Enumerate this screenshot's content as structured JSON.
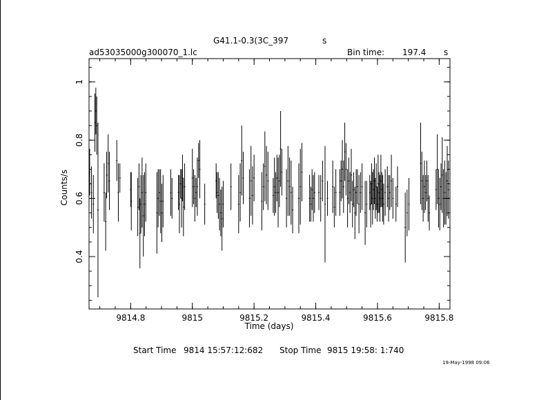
{
  "header": {
    "title": "G41.1-0.3(3C_397",
    "title_suffix": "s",
    "filename": "ad53035000g300070_1.lc",
    "bin_label": "Bin time:",
    "bin_value": "197.4",
    "bin_unit": "s"
  },
  "footer": {
    "start_label": "Start Time",
    "start_value": "9814 15:57:12:682",
    "stop_label": "Stop Time",
    "stop_value": "9815 19:58: 1:740",
    "timestamp": "19-May-1998 09:06"
  },
  "chart_data": {
    "type": "scatter",
    "title": "G41.1-0.3(3C_397",
    "xlabel": "Time (days)",
    "ylabel": "Counts/s",
    "xlim": [
      9814.665,
      9815.835
    ],
    "ylim": [
      0.22,
      1.08
    ],
    "xticks": [
      9814.8,
      9815,
      9815.2,
      9815.4,
      9815.6,
      9815.8
    ],
    "xtick_labels": [
      "9814.8",
      "9815",
      "9815.2",
      "9815.4",
      "9815.6",
      "9815.8"
    ],
    "yticks": [
      0.4,
      0.6,
      0.8,
      1.0
    ],
    "ytick_labels": [
      "0.4",
      "0.6",
      "0.8",
      "1"
    ],
    "grid": false,
    "error_bars": true,
    "points": [
      [
        9814.667,
        0.69,
        0.08
      ],
      [
        9814.673,
        0.62,
        0.09
      ],
      [
        9814.679,
        0.58,
        0.1
      ],
      [
        9814.684,
        0.86,
        0.1
      ],
      [
        9814.687,
        0.9,
        0.08
      ],
      [
        9814.69,
        0.85,
        0.1
      ],
      [
        9814.694,
        0.56,
        0.3
      ],
      [
        9814.714,
        0.62,
        0.1
      ],
      [
        9814.719,
        0.52,
        0.1
      ],
      [
        9814.722,
        0.68,
        0.08
      ],
      [
        9814.727,
        0.72,
        0.1
      ],
      [
        9814.731,
        0.66,
        0.1
      ],
      [
        9814.755,
        0.73,
        0.07
      ],
      [
        9814.76,
        0.62,
        0.1
      ],
      [
        9814.765,
        0.67,
        0.05
      ],
      [
        9814.8,
        0.63,
        0.06
      ],
      [
        9814.802,
        0.59,
        0.1
      ],
      [
        9814.823,
        0.57,
        0.1
      ],
      [
        9814.827,
        0.64,
        0.08
      ],
      [
        9814.83,
        0.48,
        0.12
      ],
      [
        9814.833,
        0.58,
        0.1
      ],
      [
        9814.837,
        0.62,
        0.12
      ],
      [
        9814.841,
        0.54,
        0.14
      ],
      [
        9814.845,
        0.58,
        0.11
      ],
      [
        9814.849,
        0.62,
        0.1
      ],
      [
        9814.885,
        0.55,
        0.14
      ],
      [
        9814.889,
        0.6,
        0.1
      ],
      [
        9814.893,
        0.62,
        0.08
      ],
      [
        9814.897,
        0.59,
        0.11
      ],
      [
        9814.901,
        0.55,
        0.1
      ],
      [
        9814.905,
        0.59,
        0.09
      ],
      [
        9814.93,
        0.62,
        0.08
      ],
      [
        9814.934,
        0.6,
        0.07
      ],
      [
        9814.955,
        0.62,
        0.06
      ],
      [
        9814.958,
        0.58,
        0.1
      ],
      [
        9814.962,
        0.65,
        0.05
      ],
      [
        9814.965,
        0.6,
        0.1
      ],
      [
        9814.968,
        0.67,
        0.08
      ],
      [
        9814.971,
        0.57,
        0.1
      ],
      [
        9814.975,
        0.64,
        0.08
      ],
      [
        9815.0,
        0.67,
        0.1
      ],
      [
        9815.004,
        0.64,
        0.06
      ],
      [
        9815.008,
        0.6,
        0.08
      ],
      [
        9815.012,
        0.62,
        0.05
      ],
      [
        9815.016,
        0.64,
        0.1
      ],
      [
        9815.02,
        0.73,
        0.06
      ],
      [
        9815.024,
        0.7,
        0.1
      ],
      [
        9815.04,
        0.58,
        0.07
      ],
      [
        9815.077,
        0.66,
        0.06
      ],
      [
        9815.08,
        0.62,
        0.07
      ],
      [
        9815.084,
        0.61,
        0.08
      ],
      [
        9815.088,
        0.58,
        0.09
      ],
      [
        9815.092,
        0.55,
        0.08
      ],
      [
        9815.096,
        0.53,
        0.11
      ],
      [
        9815.1,
        0.58,
        0.08
      ],
      [
        9815.125,
        0.64,
        0.08
      ],
      [
        9815.15,
        0.58,
        0.1
      ],
      [
        9815.155,
        0.62,
        0.1
      ],
      [
        9815.16,
        0.73,
        0.12
      ],
      [
        9815.165,
        0.67,
        0.09
      ],
      [
        9815.185,
        0.6,
        0.1
      ],
      [
        9815.19,
        0.66,
        0.12
      ],
      [
        9815.195,
        0.61,
        0.1
      ],
      [
        9815.2,
        0.67,
        0.08
      ],
      [
        9815.225,
        0.59,
        0.1
      ],
      [
        9815.23,
        0.64,
        0.08
      ],
      [
        9815.235,
        0.71,
        0.12
      ],
      [
        9815.24,
        0.68,
        0.1
      ],
      [
        9815.245,
        0.66,
        0.1
      ],
      [
        9815.262,
        0.61,
        0.06
      ],
      [
        9815.266,
        0.64,
        0.1
      ],
      [
        9815.27,
        0.62,
        0.07
      ],
      [
        9815.274,
        0.67,
        0.08
      ],
      [
        9815.278,
        0.62,
        0.12
      ],
      [
        9815.282,
        0.66,
        0.09
      ],
      [
        9815.286,
        0.77,
        0.13
      ],
      [
        9815.29,
        0.69,
        0.08
      ],
      [
        9815.305,
        0.6,
        0.1
      ],
      [
        9815.31,
        0.66,
        0.12
      ],
      [
        9815.315,
        0.64,
        0.1
      ],
      [
        9815.32,
        0.62,
        0.11
      ],
      [
        9815.325,
        0.56,
        0.08
      ],
      [
        9815.345,
        0.6,
        0.12
      ],
      [
        9815.35,
        0.64,
        0.13
      ],
      [
        9815.355,
        0.69,
        0.1
      ],
      [
        9815.38,
        0.6,
        0.08
      ],
      [
        9815.384,
        0.58,
        0.06
      ],
      [
        9815.388,
        0.63,
        0.07
      ],
      [
        9815.392,
        0.6,
        0.08
      ],
      [
        9815.396,
        0.62,
        0.07
      ],
      [
        9815.41,
        0.62,
        0.06
      ],
      [
        9815.416,
        0.6,
        0.08
      ],
      [
        9815.422,
        0.66,
        0.07
      ],
      [
        9815.43,
        0.58,
        0.2
      ],
      [
        9815.438,
        0.6,
        0.06
      ],
      [
        9815.455,
        0.64,
        0.09
      ],
      [
        9815.46,
        0.57,
        0.07
      ],
      [
        9815.465,
        0.62,
        0.08
      ],
      [
        9815.478,
        0.62,
        0.08
      ],
      [
        9815.482,
        0.66,
        0.07
      ],
      [
        9815.486,
        0.7,
        0.1
      ],
      [
        9815.49,
        0.64,
        0.09
      ],
      [
        9815.494,
        0.76,
        0.1
      ],
      [
        9815.498,
        0.7,
        0.09
      ],
      [
        9815.503,
        0.6,
        0.1
      ],
      [
        9815.507,
        0.66,
        0.08
      ],
      [
        9815.511,
        0.62,
        0.07
      ],
      [
        9815.515,
        0.68,
        0.09
      ],
      [
        9815.519,
        0.58,
        0.08
      ],
      [
        9815.523,
        0.63,
        0.06
      ],
      [
        9815.527,
        0.55,
        0.09
      ],
      [
        9815.531,
        0.62,
        0.08
      ],
      [
        9815.535,
        0.64,
        0.06
      ],
      [
        9815.54,
        0.58,
        0.1
      ],
      [
        9815.545,
        0.62,
        0.07
      ],
      [
        9815.55,
        0.64,
        0.08
      ],
      [
        9815.56,
        0.55,
        0.11
      ],
      [
        9815.565,
        0.58,
        0.08
      ],
      [
        9815.575,
        0.62,
        0.06
      ],
      [
        9815.578,
        0.58,
        0.08
      ],
      [
        9815.581,
        0.65,
        0.07
      ],
      [
        9815.584,
        0.6,
        0.09
      ],
      [
        9815.587,
        0.63,
        0.07
      ],
      [
        9815.59,
        0.66,
        0.08
      ],
      [
        9815.593,
        0.6,
        0.07
      ],
      [
        9815.596,
        0.64,
        0.08
      ],
      [
        9815.599,
        0.58,
        0.06
      ],
      [
        9815.602,
        0.65,
        0.1
      ],
      [
        9815.605,
        0.62,
        0.07
      ],
      [
        9815.608,
        0.6,
        0.08
      ],
      [
        9815.611,
        0.66,
        0.09
      ],
      [
        9815.614,
        0.63,
        0.06
      ],
      [
        9815.617,
        0.6,
        0.08
      ],
      [
        9815.62,
        0.58,
        0.07
      ],
      [
        9815.625,
        0.62,
        0.08
      ],
      [
        9815.632,
        0.64,
        0.07
      ],
      [
        9815.636,
        0.6,
        0.08
      ],
      [
        9815.64,
        0.62,
        0.06
      ],
      [
        9815.645,
        0.66,
        0.09
      ],
      [
        9815.65,
        0.6,
        0.07
      ],
      [
        9815.66,
        0.58,
        0.06
      ],
      [
        9815.665,
        0.64,
        0.07
      ],
      [
        9815.69,
        0.5,
        0.12
      ],
      [
        9815.696,
        0.55,
        0.08
      ],
      [
        9815.702,
        0.58,
        0.09
      ],
      [
        9815.74,
        0.72,
        0.14
      ],
      [
        9815.744,
        0.66,
        0.1
      ],
      [
        9815.748,
        0.6,
        0.08
      ],
      [
        9815.752,
        0.64,
        0.09
      ],
      [
        9815.756,
        0.62,
        0.06
      ],
      [
        9815.76,
        0.66,
        0.07
      ],
      [
        9815.764,
        0.6,
        0.08
      ],
      [
        9815.768,
        0.55,
        0.06
      ],
      [
        9815.79,
        0.63,
        0.07
      ],
      [
        9815.794,
        0.7,
        0.12
      ],
      [
        9815.798,
        0.6,
        0.1
      ],
      [
        9815.802,
        0.58,
        0.09
      ],
      [
        9815.806,
        0.64,
        0.08
      ],
      [
        9815.81,
        0.68,
        0.13
      ],
      [
        9815.814,
        0.6,
        0.1
      ],
      [
        9815.818,
        0.62,
        0.11
      ],
      [
        9815.822,
        0.6,
        0.09
      ],
      [
        9815.826,
        0.66,
        0.12
      ],
      [
        9815.83,
        0.63,
        0.1
      ]
    ]
  }
}
